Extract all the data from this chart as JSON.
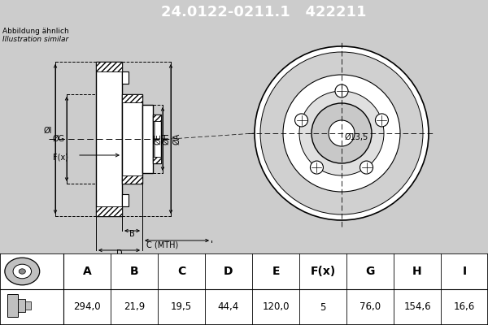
{
  "title_text": "24.0122-0211.1   422211",
  "title_bg": "#1e50a0",
  "title_fg": "white",
  "subtitle1": "Abbildung ähnlich",
  "subtitle2": "Illustration similar",
  "bg_color": "#cccccc",
  "drawing_bg": "#cccccc",
  "table_bg": "white",
  "table_headers": [
    "A",
    "B",
    "C",
    "D",
    "E",
    "F(x)",
    "G",
    "H",
    "I"
  ],
  "table_values": [
    "294,0",
    "21,9",
    "19,5",
    "44,4",
    "120,0",
    "5",
    "76,0",
    "154,6",
    "16,6"
  ],
  "dim_label": "Ø13,5",
  "title_fontsize": 13
}
